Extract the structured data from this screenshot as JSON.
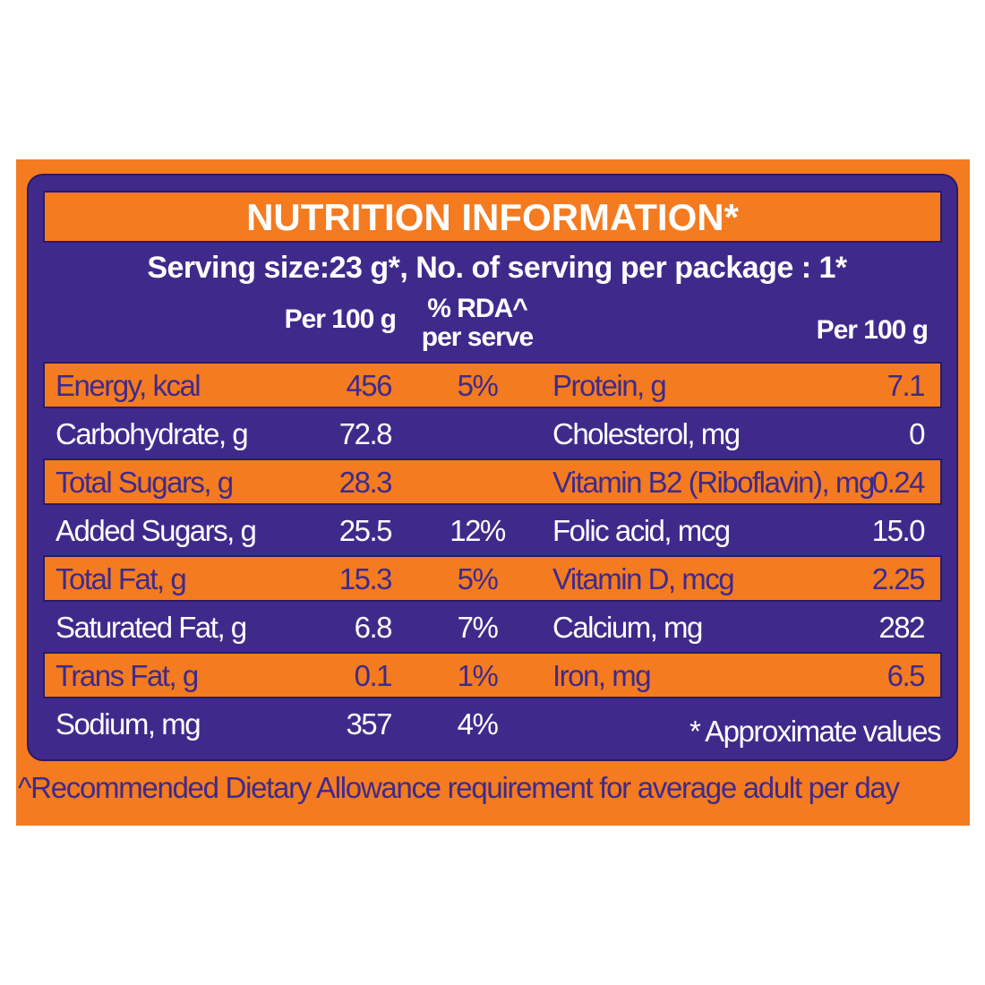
{
  "title": "NUTRITION INFORMATION*",
  "serving": "Serving size:23 g*, No. of serving per package : 1*",
  "header": {
    "per100": "Per 100 g",
    "rda": "% RDA^",
    "rda_sub": "per serve",
    "per100_right": "Per 100 g"
  },
  "table": {
    "rows": [
      [
        "Energy, kcal",
        "456",
        "5%",
        "Protein, g",
        "7.1"
      ],
      [
        "Carbohydrate, g",
        "72.8",
        null,
        "Cholesterol, mg",
        "0"
      ],
      [
        "Total Sugars, g",
        "28.3",
        null,
        "Vitamin B2 (Riboflavin), mg",
        "0.24"
      ],
      [
        "Added Sugars, g",
        "25.5",
        "12%",
        "Folic acid, mcg",
        "15.0"
      ],
      [
        "Total Fat, g",
        "15.3",
        "5%",
        "Vitamin D, mcg",
        "2.25"
      ],
      [
        "Saturated Fat, g",
        "6.8",
        "7%",
        "Calcium, mg",
        "282"
      ],
      [
        "Trans Fat, g",
        "0.1",
        "1%",
        "Iron, mg",
        "6.5"
      ],
      [
        "Sodium, mg",
        "357",
        "4%"
      ]
    ]
  },
  "note": "* Approximate values",
  "footnote": "^Recommended Dietary Allowance requirement for average adult per day"
}
